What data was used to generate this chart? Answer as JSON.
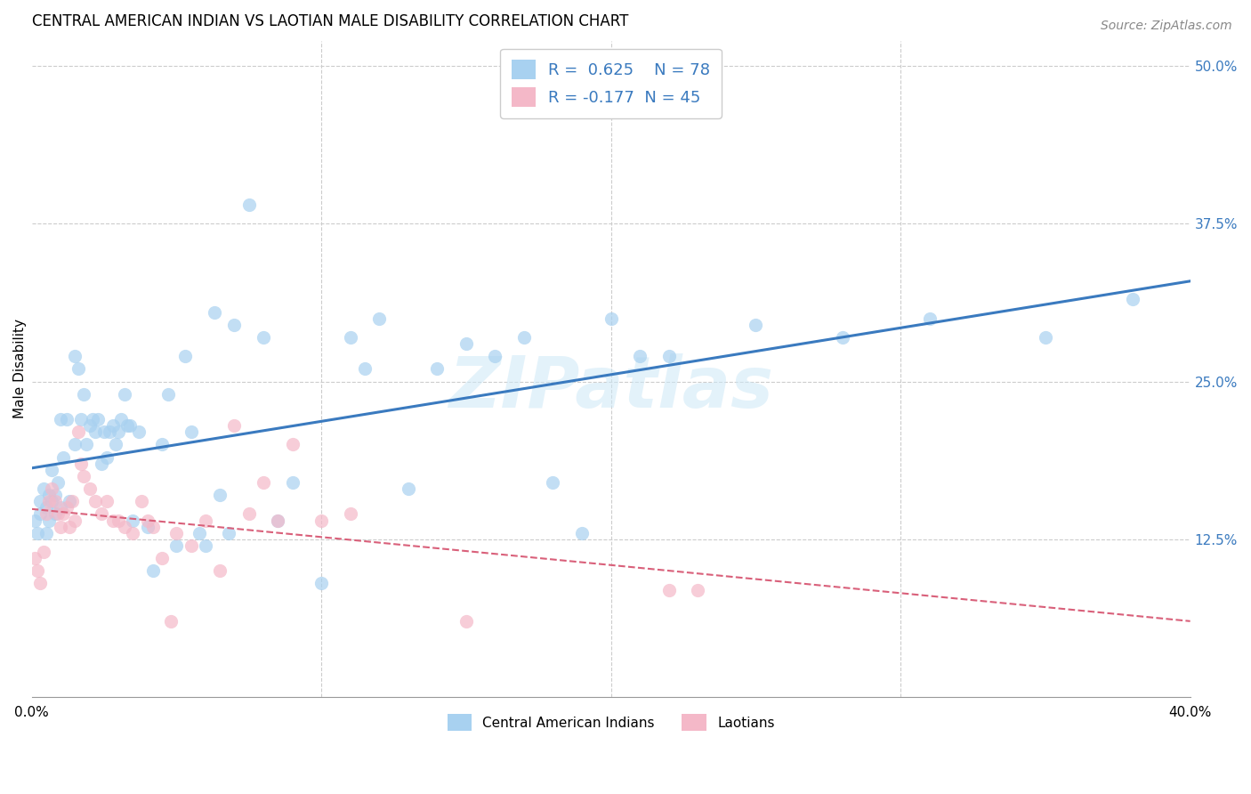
{
  "title": "CENTRAL AMERICAN INDIAN VS LAOTIAN MALE DISABILITY CORRELATION CHART",
  "source": "Source: ZipAtlas.com",
  "ylabel": "Male Disability",
  "xlim": [
    0.0,
    0.4
  ],
  "ylim": [
    0.0,
    0.52
  ],
  "yticks": [
    0.125,
    0.25,
    0.375,
    0.5
  ],
  "yticklabels": [
    "12.5%",
    "25.0%",
    "37.5%",
    "50.0%"
  ],
  "watermark": "ZIPatlas",
  "blue_color": "#a8d1f0",
  "pink_color": "#f4b8c8",
  "blue_line_color": "#3a7abf",
  "pink_line_color": "#d9607a",
  "legend_text_color": "#3a7abf",
  "right_tick_color": "#3a7abf",
  "r_blue": 0.625,
  "n_blue": 78,
  "r_pink": -0.177,
  "n_pink": 45,
  "blue_scatter_x": [
    0.001,
    0.002,
    0.003,
    0.003,
    0.004,
    0.005,
    0.005,
    0.006,
    0.006,
    0.007,
    0.007,
    0.008,
    0.008,
    0.009,
    0.01,
    0.01,
    0.011,
    0.012,
    0.013,
    0.015,
    0.015,
    0.016,
    0.017,
    0.018,
    0.019,
    0.02,
    0.021,
    0.022,
    0.023,
    0.024,
    0.025,
    0.026,
    0.027,
    0.028,
    0.029,
    0.03,
    0.031,
    0.032,
    0.033,
    0.034,
    0.035,
    0.037,
    0.04,
    0.042,
    0.045,
    0.047,
    0.05,
    0.053,
    0.055,
    0.058,
    0.06,
    0.063,
    0.065,
    0.068,
    0.07,
    0.075,
    0.08,
    0.085,
    0.09,
    0.1,
    0.11,
    0.115,
    0.12,
    0.13,
    0.14,
    0.15,
    0.16,
    0.17,
    0.18,
    0.19,
    0.2,
    0.21,
    0.22,
    0.25,
    0.28,
    0.31,
    0.35,
    0.38
  ],
  "blue_scatter_y": [
    0.14,
    0.13,
    0.155,
    0.145,
    0.165,
    0.13,
    0.15,
    0.14,
    0.16,
    0.155,
    0.18,
    0.145,
    0.16,
    0.17,
    0.15,
    0.22,
    0.19,
    0.22,
    0.155,
    0.2,
    0.27,
    0.26,
    0.22,
    0.24,
    0.2,
    0.215,
    0.22,
    0.21,
    0.22,
    0.185,
    0.21,
    0.19,
    0.21,
    0.215,
    0.2,
    0.21,
    0.22,
    0.24,
    0.215,
    0.215,
    0.14,
    0.21,
    0.135,
    0.1,
    0.2,
    0.24,
    0.12,
    0.27,
    0.21,
    0.13,
    0.12,
    0.305,
    0.16,
    0.13,
    0.295,
    0.39,
    0.285,
    0.14,
    0.17,
    0.09,
    0.285,
    0.26,
    0.3,
    0.165,
    0.26,
    0.28,
    0.27,
    0.285,
    0.17,
    0.13,
    0.3,
    0.27,
    0.27,
    0.295,
    0.285,
    0.3,
    0.285,
    0.315
  ],
  "pink_scatter_x": [
    0.001,
    0.002,
    0.003,
    0.004,
    0.005,
    0.006,
    0.007,
    0.008,
    0.009,
    0.01,
    0.011,
    0.012,
    0.013,
    0.014,
    0.015,
    0.016,
    0.017,
    0.018,
    0.02,
    0.022,
    0.024,
    0.026,
    0.028,
    0.03,
    0.032,
    0.035,
    0.038,
    0.04,
    0.042,
    0.045,
    0.048,
    0.05,
    0.055,
    0.06,
    0.065,
    0.07,
    0.075,
    0.08,
    0.085,
    0.09,
    0.1,
    0.11,
    0.15,
    0.22,
    0.23
  ],
  "pink_scatter_y": [
    0.11,
    0.1,
    0.09,
    0.115,
    0.145,
    0.155,
    0.165,
    0.155,
    0.145,
    0.135,
    0.145,
    0.15,
    0.135,
    0.155,
    0.14,
    0.21,
    0.185,
    0.175,
    0.165,
    0.155,
    0.145,
    0.155,
    0.14,
    0.14,
    0.135,
    0.13,
    0.155,
    0.14,
    0.135,
    0.11,
    0.06,
    0.13,
    0.12,
    0.14,
    0.1,
    0.215,
    0.145,
    0.17,
    0.14,
    0.2,
    0.14,
    0.145,
    0.06,
    0.085,
    0.085
  ],
  "background_color": "#ffffff",
  "grid_color": "#cccccc",
  "title_fontsize": 12,
  "label_fontsize": 11,
  "tick_fontsize": 11,
  "legend_fontsize": 13,
  "source_fontsize": 10
}
